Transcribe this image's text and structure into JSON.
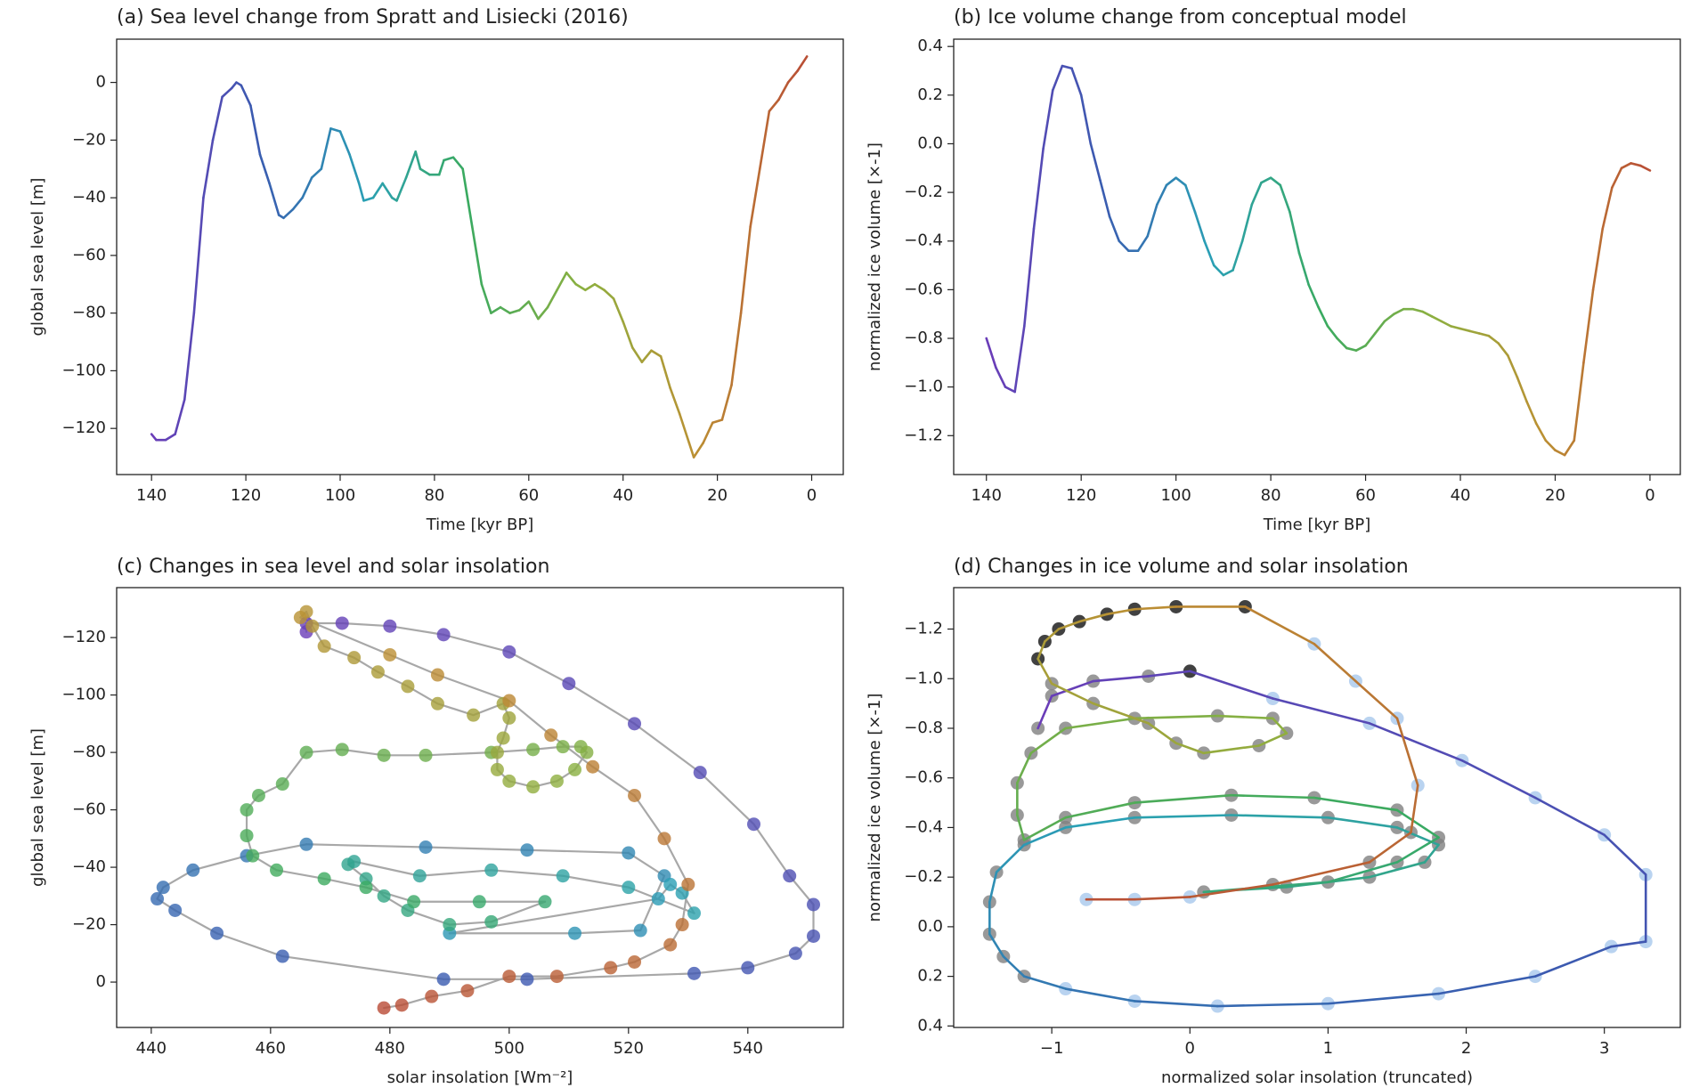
{
  "chart_data": [
    {
      "type": "line",
      "title": "(a) Sea level change from Spratt and Lisiecki (2016)",
      "xlabel": "Time [kyr BP]",
      "ylabel": "global sea level [m]",
      "xlim": [
        147.4,
        -6.7
      ],
      "ylim": [
        -136,
        15
      ],
      "xticks": [
        140,
        120,
        100,
        80,
        60,
        40,
        20,
        0
      ],
      "yticks": [
        0,
        {
          "value": -20,
          "label": "−20"
        },
        {
          "value": -40,
          "label": "−40"
        },
        {
          "value": -60,
          "label": "−60"
        },
        {
          "value": -80,
          "label": "−80"
        },
        {
          "value": -100,
          "label": "−100"
        },
        {
          "value": -120,
          "label": "−120"
        }
      ],
      "colormap": [
        "#6a3db8",
        "#3a5bb0",
        "#2aa0b5",
        "#3aaa60",
        "#8db040",
        "#bb9033",
        "#b94a35"
      ],
      "x": [
        140,
        139,
        137,
        135,
        133,
        131,
        129,
        127,
        125,
        123,
        122,
        121,
        119,
        117,
        115,
        113,
        112,
        110,
        108,
        106,
        104,
        102,
        100,
        98,
        96,
        95,
        93,
        91,
        89,
        88,
        86,
        84,
        83,
        81,
        79,
        78,
        76,
        74,
        72,
        70,
        68,
        66,
        64,
        62,
        60,
        58,
        56,
        54,
        52,
        50,
        48,
        46,
        44,
        42,
        40,
        38,
        36,
        34,
        32,
        30,
        28,
        26,
        25,
        23,
        21,
        19,
        17,
        15,
        13,
        11,
        9,
        7,
        5,
        3,
        1
      ],
      "values": [
        -122,
        -124,
        -124,
        -122,
        -110,
        -80,
        -40,
        -20,
        -5,
        -2,
        0,
        -1,
        -8,
        -25,
        -35,
        -46,
        -47,
        -44,
        -40,
        -33,
        -30,
        -16,
        -17,
        -25,
        -35,
        -41,
        -40,
        -35,
        -40,
        -41,
        -33,
        -24,
        -30,
        -32,
        -32,
        -27,
        -26,
        -30,
        -50,
        -70,
        -80,
        -78,
        -80,
        -79,
        -76,
        -82,
        -78,
        -72,
        -66,
        -70,
        -72,
        -70,
        -72,
        -75,
        -83,
        -92,
        -97,
        -93,
        -95,
        -106,
        -115,
        -125,
        -130,
        -125,
        -118,
        -117,
        -105,
        -80,
        -50,
        -30,
        -10,
        -6,
        0,
        4,
        9
      ]
    },
    {
      "type": "line",
      "title": "(b) Ice volume change from conceptual model",
      "xlabel": "Time [kyr BP]",
      "ylabel": "normalized ice volume [×-1]",
      "xlim": [
        146.9,
        -6.4
      ],
      "ylim": [
        -1.36,
        0.43
      ],
      "xticks": [
        140,
        120,
        100,
        80,
        60,
        40,
        20,
        0
      ],
      "yticks": [
        0.4,
        0.2,
        {
          "value": 0,
          "label": "0.0"
        },
        {
          "value": -0.2,
          "label": "−0.2"
        },
        {
          "value": -0.4,
          "label": "−0.4"
        },
        {
          "value": -0.6,
          "label": "−0.6"
        },
        {
          "value": -0.8,
          "label": "−0.8"
        },
        {
          "value": -1.0,
          "label": "−1.0"
        },
        {
          "value": -1.2,
          "label": "−1.2"
        }
      ],
      "colormap": [
        "#6a3db8",
        "#3a5bb0",
        "#2aa0b5",
        "#3aaa60",
        "#8db040",
        "#bb9033",
        "#b94a35"
      ],
      "x": [
        140,
        138,
        136,
        134,
        132,
        130,
        128,
        126,
        124,
        122,
        120,
        118,
        116,
        114,
        112,
        110,
        108,
        106,
        104,
        102,
        100,
        98,
        96,
        94,
        92,
        90,
        88,
        86,
        84,
        82,
        80,
        78,
        76,
        74,
        72,
        70,
        68,
        66,
        64,
        62,
        60,
        58,
        56,
        54,
        52,
        50,
        48,
        46,
        44,
        42,
        40,
        38,
        36,
        34,
        32,
        30,
        28,
        26,
        24,
        22,
        20,
        18,
        16,
        14,
        12,
        10,
        8,
        6,
        4,
        2,
        0
      ],
      "values": [
        -0.8,
        -0.92,
        -1.0,
        -1.02,
        -0.75,
        -0.35,
        -0.02,
        0.22,
        0.32,
        0.31,
        0.2,
        0.0,
        -0.15,
        -0.3,
        -0.4,
        -0.44,
        -0.44,
        -0.38,
        -0.25,
        -0.17,
        -0.14,
        -0.17,
        -0.28,
        -0.4,
        -0.5,
        -0.54,
        -0.52,
        -0.4,
        -0.25,
        -0.16,
        -0.14,
        -0.17,
        -0.28,
        -0.45,
        -0.58,
        -0.67,
        -0.75,
        -0.8,
        -0.84,
        -0.85,
        -0.83,
        -0.78,
        -0.73,
        -0.7,
        -0.68,
        -0.68,
        -0.69,
        -0.71,
        -0.73,
        -0.75,
        -0.76,
        -0.77,
        -0.78,
        -0.79,
        -0.82,
        -0.87,
        -0.96,
        -1.06,
        -1.15,
        -1.22,
        -1.26,
        -1.28,
        -1.22,
        -0.9,
        -0.6,
        -0.35,
        -0.18,
        -0.1,
        -0.08,
        -0.09,
        -0.11
      ]
    },
    {
      "type": "scatter",
      "title": "(c) Changes in sea level and solar insolation",
      "xlabel": "solar insolation [Wm⁻²]",
      "ylabel": "global sea level [m]",
      "xlim": [
        434.2,
        556
      ],
      "ylim": [
        15.8,
        -137.4
      ],
      "xticks": [
        440,
        460,
        480,
        500,
        520,
        540
      ],
      "yticks": [
        {
          "value": -120,
          "label": "−120"
        },
        {
          "value": -100,
          "label": "−100"
        },
        {
          "value": -80,
          "label": "−80"
        },
        {
          "value": -60,
          "label": "−60"
        },
        {
          "value": -40,
          "label": "−40"
        },
        {
          "value": -20,
          "label": "−20"
        },
        0
      ],
      "line_color": "#a8a8a8",
      "colormap": [
        "#6a3db8",
        "#3a5bb0",
        "#2aa0b5",
        "#3aaa60",
        "#8db040",
        "#bb9033",
        "#b94a35"
      ],
      "x": [
        466,
        466,
        472,
        480,
        489,
        500,
        510,
        521,
        532,
        541,
        547,
        551,
        551,
        548,
        540,
        531,
        503,
        489,
        462,
        451,
        444,
        441,
        442,
        447,
        456,
        466,
        486,
        503,
        520,
        526,
        522,
        511,
        490,
        525,
        527,
        529,
        531,
        520,
        509,
        497,
        485,
        474,
        473,
        476,
        479,
        483,
        490,
        497,
        506,
        495,
        484,
        476,
        469,
        461,
        457,
        456,
        456,
        458,
        462,
        466,
        472,
        479,
        486,
        497,
        504,
        509,
        512,
        513,
        511,
        508,
        504,
        500,
        498,
        498,
        499,
        500,
        499,
        494,
        488,
        483,
        478,
        474,
        469,
        467,
        466,
        465,
        480,
        488,
        500,
        507,
        514,
        521,
        526,
        530,
        529,
        527,
        521,
        517,
        508,
        500,
        493,
        487,
        482,
        479
      ],
      "values": [
        -122,
        -125,
        -125,
        -124,
        -121,
        -115,
        -104,
        -90,
        -73,
        -55,
        -37,
        -27,
        -16,
        -10,
        -5,
        -3,
        -1,
        -1,
        -9,
        -17,
        -25,
        -29,
        -33,
        -39,
        -44,
        -48,
        -47,
        -46,
        -45,
        -37,
        -18,
        -17,
        -17,
        -29,
        -34,
        -31,
        -24,
        -33,
        -37,
        -39,
        -37,
        -42,
        -41,
        -36,
        -30,
        -25,
        -20,
        -21,
        -28,
        -28,
        -28,
        -33,
        -36,
        -39,
        -44,
        -51,
        -60,
        -65,
        -69,
        -80,
        -81,
        -79,
        -79,
        -80,
        -81,
        -82,
        -82,
        -80,
        -74,
        -70,
        -68,
        -70,
        -74,
        -80,
        -85,
        -92,
        -97,
        -93,
        -97,
        -103,
        -108,
        -113,
        -117,
        -124,
        -129,
        -127,
        -114,
        -107,
        -98,
        -86,
        -75,
        -65,
        -50,
        -34,
        -20,
        -13,
        -7,
        -5,
        -2,
        -2,
        3,
        5,
        8,
        9
      ]
    },
    {
      "type": "scatter",
      "title": "(d) Changes in ice volume and solar insolation",
      "xlabel": "normalized solar insolation (truncated)",
      "ylabel": "normalized ice volume [×-1]",
      "xlim": [
        -1.71,
        3.55
      ],
      "ylim": [
        0.406,
        -1.367
      ],
      "xticks": [
        {
          "value": -1,
          "label": "−1"
        },
        0,
        1,
        2,
        3
      ],
      "yticks": [
        {
          "value": -1.2,
          "label": "−1.2"
        },
        {
          "value": -1.0,
          "label": "−1.0"
        },
        {
          "value": -0.8,
          "label": "−0.8"
        },
        {
          "value": -0.6,
          "label": "−0.6"
        },
        {
          "value": -0.4,
          "label": "−0.4"
        },
        {
          "value": -0.2,
          "label": "−0.2"
        },
        {
          "value": 0,
          "label": "0.0"
        },
        0.2,
        0.4
      ],
      "colormap": [
        "#6a3db8",
        "#3a5bb0",
        "#2aa0b5",
        "#3aaa60",
        "#8db040",
        "#bb9033",
        "#b94a35"
      ],
      "x": [
        -1.1,
        -1.0,
        -0.7,
        -0.3,
        0,
        0.6,
        1.3,
        1.97,
        2.5,
        3.0,
        3.3,
        3.3,
        3.05,
        2.5,
        1.8,
        1.0,
        0.2,
        -0.4,
        -0.9,
        -1.2,
        -1.35,
        -1.45,
        -1.45,
        -1.4,
        -1.2,
        -0.9,
        -0.4,
        0.3,
        1.0,
        1.5,
        1.8,
        1.7,
        1.3,
        0.7,
        0.1,
        1.0,
        1.5,
        1.8,
        1.5,
        0.9,
        0.3,
        -0.4,
        -0.9,
        -1.2,
        -1.25,
        -1.25,
        -1.15,
        -0.9,
        -0.4,
        0.2,
        0.6,
        0.7,
        0.5,
        0.1,
        -0.1,
        -0.3,
        -0.7,
        -1.0,
        -1.1,
        -1.05,
        -0.95,
        -0.8,
        -0.6,
        -0.4,
        -0.1,
        0.4,
        0.9,
        1.2,
        1.5,
        1.65,
        1.6,
        1.3,
        0.6,
        0,
        -0.4,
        -0.75
      ],
      "values": [
        -0.8,
        -0.93,
        -0.99,
        -1.01,
        -1.03,
        -0.92,
        -0.82,
        -0.67,
        -0.52,
        -0.37,
        -0.21,
        0.06,
        0.08,
        0.2,
        0.27,
        0.31,
        0.32,
        0.3,
        0.25,
        0.2,
        0.12,
        0.03,
        -0.1,
        -0.22,
        -0.33,
        -0.4,
        -0.44,
        -0.45,
        -0.44,
        -0.4,
        -0.33,
        -0.26,
        -0.2,
        -0.16,
        -0.14,
        -0.18,
        -0.26,
        -0.36,
        -0.47,
        -0.52,
        -0.53,
        -0.5,
        -0.44,
        -0.35,
        -0.45,
        -0.58,
        -0.7,
        -0.8,
        -0.84,
        -0.85,
        -0.84,
        -0.78,
        -0.73,
        -0.7,
        -0.74,
        -0.82,
        -0.9,
        -0.98,
        -1.08,
        -1.15,
        -1.2,
        -1.23,
        -1.26,
        -1.28,
        -1.29,
        -1.29,
        -1.14,
        -0.99,
        -0.84,
        -0.57,
        -0.38,
        -0.26,
        -0.17,
        -0.12,
        -0.11,
        -0.11
      ],
      "marker_colors": [
        "#808080",
        "#808080",
        "#808080",
        "#808080",
        "#111111",
        "#a8c8ec",
        "#a8c8ec",
        "#a8c8ec",
        "#a8c8ec",
        "#a8c8ec",
        "#a8c8ec",
        "#a8c8ec",
        "#a8c8ec",
        "#a8c8ec",
        "#a8c8ec",
        "#a8c8ec",
        "#a8c8ec",
        "#a8c8ec",
        "#a8c8ec",
        "#808080",
        "#808080",
        "#808080",
        "#808080",
        "#808080",
        "#808080",
        "#808080",
        "#808080",
        "#808080",
        "#808080",
        "#808080",
        "#808080",
        "#808080",
        "#808080",
        "#808080",
        "#808080",
        "#808080",
        "#808080",
        "#808080",
        "#808080",
        "#808080",
        "#808080",
        "#808080",
        "#808080",
        "#808080",
        "#808080",
        "#808080",
        "#808080",
        "#808080",
        "#808080",
        "#808080",
        "#808080",
        "#808080",
        "#808080",
        "#808080",
        "#808080",
        "#808080",
        "#808080",
        "#808080",
        "#111111",
        "#111111",
        "#111111",
        "#111111",
        "#111111",
        "#111111",
        "#111111",
        "#111111",
        "#a8c8ec",
        "#a8c8ec",
        "#a8c8ec",
        "#a8c8ec",
        "#808080",
        "#808080",
        "#808080",
        "#a8c8ec",
        "#a8c8ec",
        "#a8c8ec"
      ]
    }
  ]
}
